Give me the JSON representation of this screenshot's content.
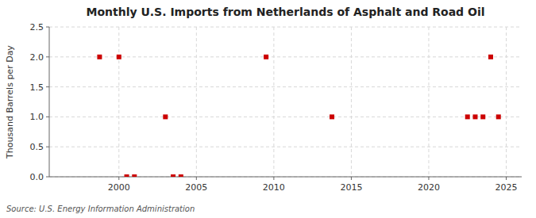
{
  "chart_data": {
    "type": "scatter",
    "title": "Monthly U.S. Imports from Netherlands of Asphalt and Road Oil",
    "ylabel": "Thousand Barrels per Day",
    "source": "Source: U.S. Energy Information Administration",
    "x": [
      1998.75,
      2000.0,
      2000.5,
      2001.0,
      2003.5,
      2004.0,
      2003.0,
      2009.5,
      2013.75,
      2022.5,
      2023.0,
      2023.5,
      2024.0,
      2024.5
    ],
    "values": [
      2.0,
      2.0,
      0.0,
      0.0,
      0.0,
      0.0,
      1.0,
      2.0,
      1.0,
      1.0,
      1.0,
      1.0,
      2.0,
      1.0
    ],
    "color": "#cc0000",
    "marker": "square",
    "xlim": [
      1995.5,
      2026.0
    ],
    "ylim": [
      0.0,
      2.5
    ],
    "xticks": [
      2000,
      2005,
      2010,
      2015,
      2020,
      2025
    ],
    "yticks": [
      {
        "value": 0.0,
        "label": "0.0"
      },
      0.5,
      {
        "value": 1.0,
        "label": "1.0"
      },
      1.5,
      {
        "value": 2.0,
        "label": "2.0"
      },
      2.5
    ],
    "grid": true
  }
}
